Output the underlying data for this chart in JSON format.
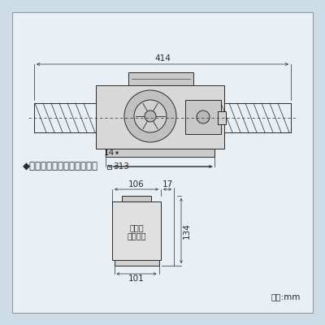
{
  "bg_color": "#ccdde8",
  "panel_color": "#e8f0f5",
  "line_color": "#2a2a2a",
  "dim_414": "414",
  "dim_313": "313",
  "dim_14": "14",
  "dim_106": "106",
  "dim_17": "17",
  "dim_134": "134",
  "dim_101": "101",
  "label_cover": "◆カバープレート（同梱品）",
  "label_kaba": "カバー",
  "label_plate": "プレート",
  "label_unit": "単位:mm",
  "font_size_dim": 7.5,
  "font_size_label": 8.5,
  "font_size_small": 7
}
